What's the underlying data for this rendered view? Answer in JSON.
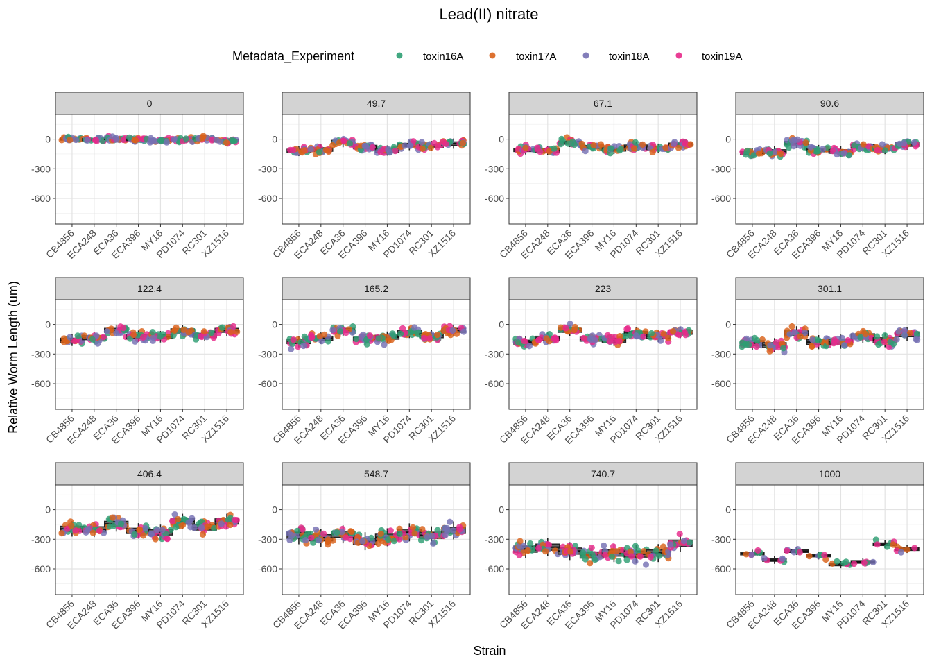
{
  "chart_data": {
    "type": "scatter",
    "subtype": "faceted box + jitter",
    "title": "Lead(II) nitrate",
    "xlabel": "Strain",
    "ylabel": "Relative Worm Length (um)",
    "legend": {
      "title": "Metadata_Experiment",
      "placement": "top",
      "entries": [
        {
          "name": "toxin16A",
          "color": "#2E9E73"
        },
        {
          "name": "toxin17A",
          "color": "#D9621A"
        },
        {
          "name": "toxin18A",
          "color": "#7570B3"
        },
        {
          "name": "toxin19A",
          "color": "#E7298A"
        }
      ]
    },
    "categories": [
      "CB4856",
      "ECA248",
      "ECA36",
      "ECA396",
      "MY16",
      "PD1074",
      "RC301",
      "XZ1516"
    ],
    "ylim": [
      -860,
      250
    ],
    "yticks": [
      0,
      -300,
      -600
    ],
    "ytick_labels": [
      "0",
      "-300",
      "-600"
    ],
    "grid": true,
    "facets": [
      {
        "label": "0",
        "medians": [
          0,
          -5,
          5,
          -5,
          -10,
          -5,
          5,
          -15
        ],
        "spread": 22,
        "n": 20
      },
      {
        "label": "49.7",
        "medians": [
          -120,
          -105,
          -30,
          -80,
          -115,
          -60,
          -70,
          -45
        ],
        "spread": 40,
        "n": 18
      },
      {
        "label": "67.1",
        "medians": [
          -110,
          -115,
          -35,
          -80,
          -105,
          -75,
          -90,
          -55
        ],
        "spread": 35,
        "n": 18
      },
      {
        "label": "90.6",
        "medians": [
          -140,
          -125,
          -40,
          -110,
          -125,
          -75,
          -100,
          -55
        ],
        "spread": 40,
        "n": 18
      },
      {
        "label": "122.4",
        "medians": [
          -160,
          -135,
          -60,
          -120,
          -125,
          -65,
          -110,
          -60
        ],
        "spread": 45,
        "n": 18
      },
      {
        "label": "165.2",
        "medians": [
          -175,
          -140,
          -60,
          -150,
          -130,
          -80,
          -115,
          -60
        ],
        "spread": 45,
        "n": 18
      },
      {
        "label": "223",
        "medians": [
          -180,
          -140,
          -60,
          -150,
          -160,
          -90,
          -120,
          -80
        ],
        "spread": 45,
        "n": 18
      },
      {
        "label": "301.1",
        "medians": [
          -190,
          -210,
          -90,
          -180,
          -175,
          -120,
          -160,
          -100
        ],
        "spread": 55,
        "n": 18
      },
      {
        "label": "406.4",
        "medians": [
          -195,
          -200,
          -145,
          -215,
          -230,
          -120,
          -180,
          -120
        ],
        "spread": 60,
        "n": 18
      },
      {
        "label": "548.7",
        "medians": [
          -260,
          -285,
          -250,
          -320,
          -280,
          -230,
          -260,
          -210
        ],
        "spread": 70,
        "n": 18
      },
      {
        "label": "740.7",
        "medians": [
          -400,
          -380,
          -420,
          -460,
          -440,
          -450,
          -440,
          -340
        ],
        "spread": 70,
        "n": 16
      },
      {
        "label": "1000",
        "medians": [
          -445,
          -510,
          -420,
          -465,
          -555,
          -530,
          -350,
          -400
        ],
        "spread": 30,
        "n": 6
      }
    ]
  }
}
